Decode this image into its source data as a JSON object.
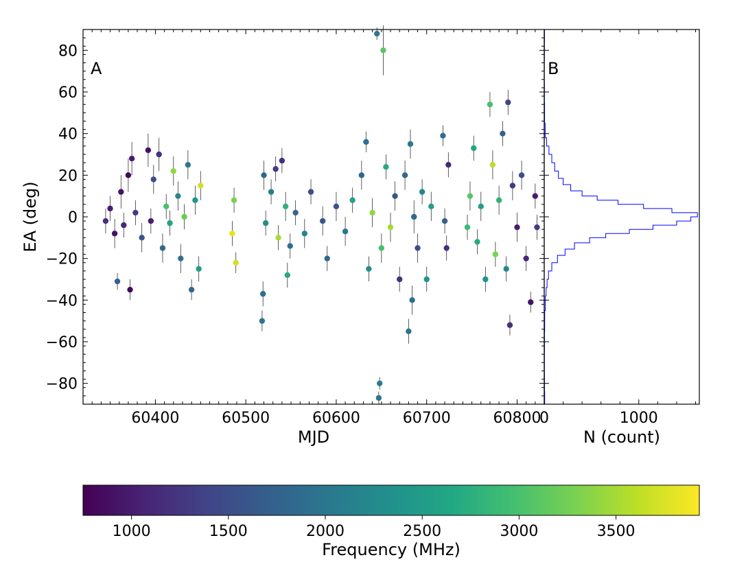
{
  "chart_data": [
    {
      "panel": "A",
      "type": "scatter",
      "xlabel": "MJD",
      "ylabel": "EA (deg)",
      "xlim": [
        60320,
        60830
      ],
      "ylim": [
        -90,
        90
      ],
      "x_ticks": [
        60400,
        60500,
        60600,
        60700,
        60800
      ],
      "x_tick_labels": [
        "60400",
        "60500",
        "60600",
        "60700",
        "60800"
      ],
      "y_ticks": [
        -80,
        -60,
        -40,
        -20,
        0,
        20,
        40,
        60,
        80
      ],
      "y_tick_labels": [
        "−80",
        "−60",
        "−40",
        "−20",
        "0",
        "20",
        "40",
        "60",
        "80"
      ],
      "color_by": "Frequency (MHz)",
      "error_bars": true,
      "points": [
        {
          "x": 60345,
          "y": -2,
          "f": 1200,
          "err": 6
        },
        {
          "x": 60350,
          "y": 4,
          "f": 1000,
          "err": 6
        },
        {
          "x": 60355,
          "y": -8,
          "f": 900,
          "err": 7
        },
        {
          "x": 60358,
          "y": -31,
          "f": 1700,
          "err": 4
        },
        {
          "x": 60362,
          "y": 12,
          "f": 900,
          "err": 8
        },
        {
          "x": 60365,
          "y": -4,
          "f": 1100,
          "err": 6
        },
        {
          "x": 60370,
          "y": 20,
          "f": 800,
          "err": 8
        },
        {
          "x": 60372,
          "y": -35,
          "f": 800,
          "err": 5
        },
        {
          "x": 60374,
          "y": 28,
          "f": 1000,
          "err": 8
        },
        {
          "x": 60378,
          "y": 2,
          "f": 1300,
          "err": 6
        },
        {
          "x": 60385,
          "y": -10,
          "f": 1600,
          "err": 7
        },
        {
          "x": 60392,
          "y": 32,
          "f": 900,
          "err": 8
        },
        {
          "x": 60395,
          "y": -2,
          "f": 1000,
          "err": 6
        },
        {
          "x": 60398,
          "y": 18,
          "f": 1500,
          "err": 7
        },
        {
          "x": 60404,
          "y": 30,
          "f": 1200,
          "err": 8
        },
        {
          "x": 60408,
          "y": -15,
          "f": 1800,
          "err": 7
        },
        {
          "x": 60412,
          "y": 5,
          "f": 3000,
          "err": 6
        },
        {
          "x": 60416,
          "y": -3,
          "f": 2600,
          "err": 6
        },
        {
          "x": 60420,
          "y": 22,
          "f": 3400,
          "err": 7
        },
        {
          "x": 60425,
          "y": 10,
          "f": 2200,
          "err": 7
        },
        {
          "x": 60428,
          "y": -20,
          "f": 1900,
          "err": 7
        },
        {
          "x": 60432,
          "y": 0,
          "f": 3200,
          "err": 6
        },
        {
          "x": 60436,
          "y": 25,
          "f": 2000,
          "err": 7
        },
        {
          "x": 60440,
          "y": -35,
          "f": 1800,
          "err": 5
        },
        {
          "x": 60444,
          "y": 8,
          "f": 2400,
          "err": 7
        },
        {
          "x": 60448,
          "y": -25,
          "f": 2500,
          "err": 6
        },
        {
          "x": 60450,
          "y": 15,
          "f": 3700,
          "err": 7
        },
        {
          "x": 60485,
          "y": -8,
          "f": 3800,
          "err": 6
        },
        {
          "x": 60487,
          "y": 8,
          "f": 3300,
          "err": 6
        },
        {
          "x": 60489,
          "y": -22,
          "f": 3700,
          "err": 5
        },
        {
          "x": 60518,
          "y": -50,
          "f": 2000,
          "err": 5
        },
        {
          "x": 60519,
          "y": -37,
          "f": 1900,
          "err": 6
        },
        {
          "x": 60520,
          "y": 20,
          "f": 1800,
          "err": 7
        },
        {
          "x": 60522,
          "y": -3,
          "f": 2300,
          "err": 6
        },
        {
          "x": 60528,
          "y": 12,
          "f": 2100,
          "err": 6
        },
        {
          "x": 60533,
          "y": 23,
          "f": 1300,
          "err": 6
        },
        {
          "x": 60536,
          "y": -10,
          "f": 3500,
          "err": 6
        },
        {
          "x": 60540,
          "y": 27,
          "f": 1200,
          "err": 6
        },
        {
          "x": 60544,
          "y": 5,
          "f": 2800,
          "err": 7
        },
        {
          "x": 60546,
          "y": -28,
          "f": 2700,
          "err": 6
        },
        {
          "x": 60549,
          "y": -14,
          "f": 1900,
          "err": 6
        },
        {
          "x": 60555,
          "y": 2,
          "f": 1800,
          "err": 6
        },
        {
          "x": 60565,
          "y": -8,
          "f": 2200,
          "err": 7
        },
        {
          "x": 60572,
          "y": 12,
          "f": 1500,
          "err": 6
        },
        {
          "x": 60585,
          "y": -2,
          "f": 1600,
          "err": 7
        },
        {
          "x": 60590,
          "y": -20,
          "f": 1800,
          "err": 6
        },
        {
          "x": 60600,
          "y": 5,
          "f": 1600,
          "err": 7
        },
        {
          "x": 60610,
          "y": -7,
          "f": 2000,
          "err": 7
        },
        {
          "x": 60618,
          "y": 8,
          "f": 2600,
          "err": 6
        },
        {
          "x": 60628,
          "y": 20,
          "f": 1800,
          "err": 7
        },
        {
          "x": 60633,
          "y": 36,
          "f": 1900,
          "err": 5
        },
        {
          "x": 60636,
          "y": -25,
          "f": 2300,
          "err": 6
        },
        {
          "x": 60640,
          "y": 2,
          "f": 3400,
          "err": 7
        },
        {
          "x": 60645,
          "y": 88,
          "f": 2000,
          "err": 3
        },
        {
          "x": 60647,
          "y": -87,
          "f": 2000,
          "err": 3
        },
        {
          "x": 60648,
          "y": -80,
          "f": 2100,
          "err": 3
        },
        {
          "x": 60650,
          "y": -15,
          "f": 3000,
          "err": 7
        },
        {
          "x": 60652,
          "y": 80,
          "f": 3100,
          "err": 12
        },
        {
          "x": 60655,
          "y": 24,
          "f": 2700,
          "err": 6
        },
        {
          "x": 60660,
          "y": -5,
          "f": 3500,
          "err": 7
        },
        {
          "x": 60665,
          "y": 10,
          "f": 1600,
          "err": 7
        },
        {
          "x": 60670,
          "y": -30,
          "f": 1200,
          "err": 6
        },
        {
          "x": 60676,
          "y": 20,
          "f": 1800,
          "err": 7
        },
        {
          "x": 60680,
          "y": -55,
          "f": 2000,
          "err": 6
        },
        {
          "x": 60682,
          "y": 35,
          "f": 2000,
          "err": 7
        },
        {
          "x": 60684,
          "y": -40,
          "f": 1900,
          "err": 7
        },
        {
          "x": 60686,
          "y": 0,
          "f": 1800,
          "err": 8
        },
        {
          "x": 60690,
          "y": -15,
          "f": 1500,
          "err": 7
        },
        {
          "x": 60695,
          "y": 12,
          "f": 2200,
          "err": 6
        },
        {
          "x": 60700,
          "y": -30,
          "f": 2400,
          "err": 6
        },
        {
          "x": 60705,
          "y": 5,
          "f": 2500,
          "err": 7
        },
        {
          "x": 60718,
          "y": 39,
          "f": 1900,
          "err": 5
        },
        {
          "x": 60720,
          "y": -2,
          "f": 1700,
          "err": 6
        },
        {
          "x": 60722,
          "y": -15,
          "f": 1200,
          "err": 6
        },
        {
          "x": 60724,
          "y": 25,
          "f": 1100,
          "err": 6
        },
        {
          "x": 60745,
          "y": -5,
          "f": 2900,
          "err": 6
        },
        {
          "x": 60748,
          "y": 10,
          "f": 3100,
          "err": 7
        },
        {
          "x": 60752,
          "y": 33,
          "f": 2600,
          "err": 6
        },
        {
          "x": 60756,
          "y": -12,
          "f": 2700,
          "err": 6
        },
        {
          "x": 60760,
          "y": 5,
          "f": 2500,
          "err": 7
        },
        {
          "x": 60765,
          "y": -30,
          "f": 2400,
          "err": 6
        },
        {
          "x": 60770,
          "y": 54,
          "f": 3000,
          "err": 6
        },
        {
          "x": 60773,
          "y": 25,
          "f": 3600,
          "err": 7
        },
        {
          "x": 60776,
          "y": -18,
          "f": 3300,
          "err": 6
        },
        {
          "x": 60780,
          "y": 8,
          "f": 2800,
          "err": 7
        },
        {
          "x": 60784,
          "y": 40,
          "f": 1700,
          "err": 6
        },
        {
          "x": 60788,
          "y": -25,
          "f": 2200,
          "err": 6
        },
        {
          "x": 60790,
          "y": 55,
          "f": 1400,
          "err": 6
        },
        {
          "x": 60792,
          "y": -52,
          "f": 1200,
          "err": 5
        },
        {
          "x": 60795,
          "y": 15,
          "f": 1300,
          "err": 7
        },
        {
          "x": 60800,
          "y": -5,
          "f": 1000,
          "err": 7
        },
        {
          "x": 60805,
          "y": 20,
          "f": 1500,
          "err": 7
        },
        {
          "x": 60810,
          "y": -20,
          "f": 1100,
          "err": 6
        },
        {
          "x": 60815,
          "y": -41,
          "f": 900,
          "err": 5
        },
        {
          "x": 60820,
          "y": 10,
          "f": 1000,
          "err": 6
        },
        {
          "x": 60822,
          "y": -5,
          "f": 1300,
          "err": 6
        }
      ]
    },
    {
      "panel": "B",
      "type": "histogram",
      "orientation": "horizontal",
      "xlabel": "N (count)",
      "xlim": [
        0,
        1640
      ],
      "x_ticks": [
        0,
        1000
      ],
      "x_tick_labels": [
        "0",
        "1000"
      ],
      "color": "#0000ff",
      "bin_centers": [
        -88,
        -80,
        -70,
        -60,
        -50,
        -40,
        -36,
        -32,
        -28,
        -24,
        -20,
        -17,
        -14,
        -11,
        -9,
        -7,
        -5,
        -3,
        -1,
        1,
        3,
        5,
        7,
        9,
        11,
        14,
        17,
        20,
        24,
        28,
        32,
        36,
        40,
        50,
        60,
        70,
        80,
        88
      ],
      "counts": [
        5,
        3,
        2,
        3,
        5,
        12,
        20,
        30,
        45,
        80,
        140,
        220,
        320,
        480,
        650,
        900,
        1150,
        1400,
        1550,
        1620,
        1350,
        1050,
        780,
        560,
        400,
        280,
        200,
        150,
        110,
        80,
        50,
        25,
        10,
        4,
        2,
        1,
        2,
        3
      ]
    },
    {
      "type": "colorbar",
      "label": "Frequency (MHz)",
      "range": [
        750,
        3930
      ],
      "ticks": [
        1000,
        1500,
        2000,
        2500,
        3000,
        3500
      ],
      "tick_labels": [
        "1000",
        "1500",
        "2000",
        "2500",
        "3000",
        "3500"
      ],
      "colormap": "viridis"
    }
  ]
}
